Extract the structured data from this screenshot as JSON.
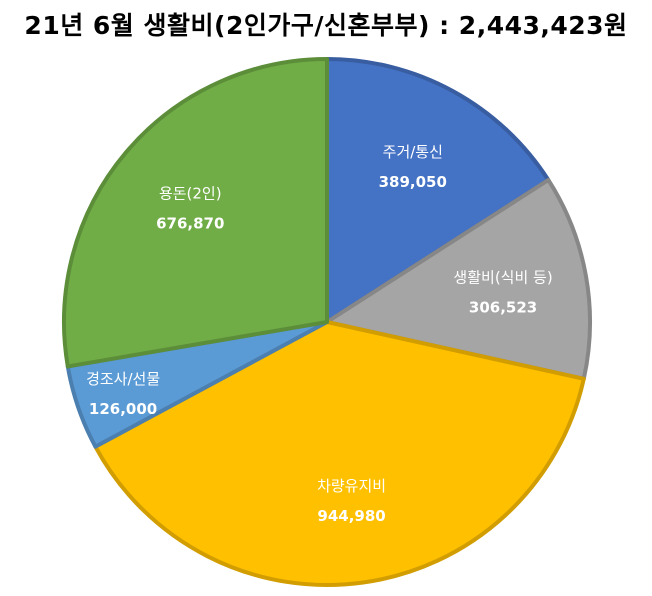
{
  "chart_data": {
    "type": "pie",
    "title": "21년 6월 생활비(2인가구/신혼부부) : 2,443,423원",
    "slices": [
      {
        "label": "주거/통신",
        "value": 389050,
        "value_text": "389,050",
        "color": "#4472C4"
      },
      {
        "label": "생활비(식비 등)",
        "value": 306523,
        "value_text": "306,523",
        "color": "#A5A5A5"
      },
      {
        "label": "차량유지비",
        "value": 944980,
        "value_text": "944,980",
        "color": "#FFC000"
      },
      {
        "label": "경조사/선물",
        "value": 126000,
        "value_text": "126,000",
        "color": "#5B9BD5"
      },
      {
        "label": "용돈(2인)",
        "value": 676870,
        "value_text": "676,870",
        "color": "#70AD47"
      }
    ],
    "legend": "none"
  }
}
